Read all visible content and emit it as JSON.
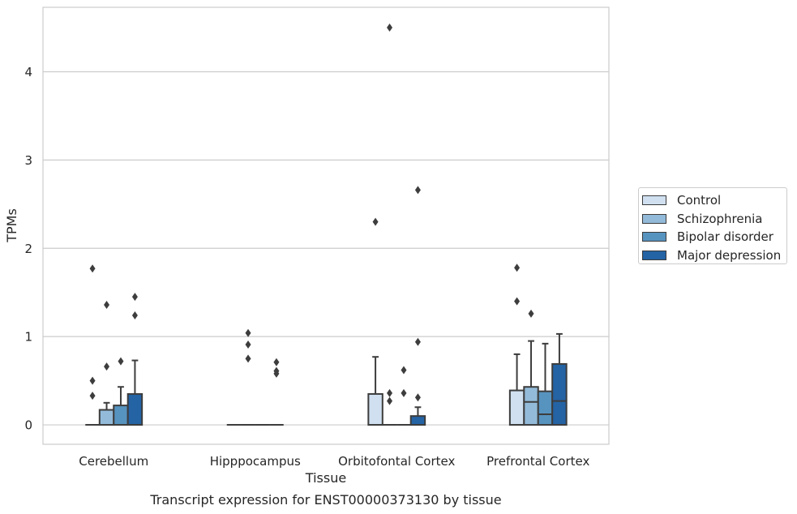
{
  "caption": "Transcript expression for ENST00000373130 by tissue",
  "chart_data": {
    "type": "box",
    "xlabel": "Tissue",
    "ylabel": "TPMs",
    "ylim": [
      -0.22,
      4.73
    ],
    "yticks": [
      0,
      1,
      2,
      3,
      4
    ],
    "grid": "horizontal",
    "legend_position": "right",
    "categories": [
      "Cerebellum",
      "Hipppocampus",
      "Orbitofontal Cortex",
      "Prefrontal Cortex"
    ],
    "series": [
      {
        "name": "Control",
        "color": "#d0e0f0",
        "boxes": [
          {
            "q1": 0,
            "median": 0,
            "q3": 0,
            "whislo": 0,
            "whishi": 0,
            "fliers": [
              0.33,
              0.5,
              1.77
            ]
          },
          {
            "q1": 0,
            "median": 0,
            "q3": 0,
            "whislo": 0,
            "whishi": 0,
            "fliers": []
          },
          {
            "q1": 0,
            "median": 0,
            "q3": 0.35,
            "whislo": 0,
            "whishi": 0.77,
            "fliers": [
              2.3
            ]
          },
          {
            "q1": 0,
            "median": 0,
            "q3": 0.39,
            "whislo": 0,
            "whishi": 0.8,
            "fliers": [
              1.4,
              1.78
            ]
          }
        ]
      },
      {
        "name": "Schizophrenia",
        "color": "#93bbd9",
        "boxes": [
          {
            "q1": 0,
            "median": 0,
            "q3": 0.17,
            "whislo": 0,
            "whishi": 0.25,
            "fliers": [
              0.66,
              1.36
            ]
          },
          {
            "q1": 0,
            "median": 0,
            "q3": 0,
            "whislo": 0,
            "whishi": 0,
            "fliers": [
              0.75,
              0.91,
              1.04
            ]
          },
          {
            "q1": 0,
            "median": 0,
            "q3": 0,
            "whislo": 0,
            "whishi": 0,
            "fliers": [
              0.27,
              0.36,
              4.5
            ]
          },
          {
            "q1": 0,
            "median": 0.26,
            "q3": 0.43,
            "whislo": 0,
            "whishi": 0.95,
            "fliers": [
              1.26
            ]
          }
        ]
      },
      {
        "name": "Bipolar disorder",
        "color": "#5793bf",
        "boxes": [
          {
            "q1": 0,
            "median": 0,
            "q3": 0.22,
            "whislo": 0,
            "whishi": 0.43,
            "fliers": [
              0.72
            ]
          },
          {
            "q1": 0,
            "median": 0,
            "q3": 0,
            "whislo": 0,
            "whishi": 0,
            "fliers": []
          },
          {
            "q1": 0,
            "median": 0,
            "q3": 0,
            "whislo": 0,
            "whishi": 0,
            "fliers": [
              0.36,
              0.62
            ]
          },
          {
            "q1": 0,
            "median": 0.12,
            "q3": 0.38,
            "whislo": 0,
            "whishi": 0.92,
            "fliers": []
          }
        ]
      },
      {
        "name": "Major depression",
        "color": "#2463a4",
        "boxes": [
          {
            "q1": 0,
            "median": 0,
            "q3": 0.35,
            "whislo": 0,
            "whishi": 0.73,
            "fliers": [
              1.24,
              1.45
            ]
          },
          {
            "q1": 0,
            "median": 0,
            "q3": 0,
            "whislo": 0,
            "whishi": 0,
            "fliers": [
              0.58,
              0.61,
              0.71
            ]
          },
          {
            "q1": 0,
            "median": 0,
            "q3": 0.1,
            "whislo": 0,
            "whishi": 0.2,
            "fliers": [
              0.31,
              0.94,
              2.66
            ]
          },
          {
            "q1": 0,
            "median": 0.27,
            "q3": 0.69,
            "whislo": 0,
            "whishi": 1.03,
            "fliers": []
          }
        ]
      }
    ]
  }
}
